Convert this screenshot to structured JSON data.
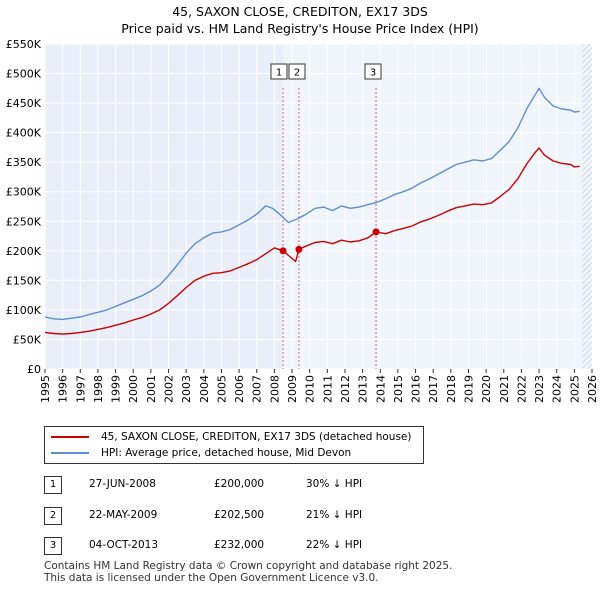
{
  "chart_data": {
    "type": "line",
    "title": "45, SAXON CLOSE, CREDITON, EX17 3DS",
    "subtitle": "Price paid vs. HM Land Registry's House Price Index (HPI)",
    "ylim": [
      0,
      550000
    ],
    "xlim": [
      1995,
      2026
    ],
    "y_ticks": [
      "£0",
      "£50K",
      "£100K",
      "£150K",
      "£200K",
      "£250K",
      "£300K",
      "£350K",
      "£400K",
      "£450K",
      "£500K",
      "£550K"
    ],
    "y_tick_values": [
      0,
      50000,
      100000,
      150000,
      200000,
      250000,
      300000,
      350000,
      400000,
      450000,
      500000,
      550000
    ],
    "x_ticks": [
      "1995",
      "1996",
      "1997",
      "1998",
      "1999",
      "2000",
      "2001",
      "2002",
      "2003",
      "2004",
      "2005",
      "2006",
      "2007",
      "2008",
      "2009",
      "2010",
      "2011",
      "2012",
      "2013",
      "2014",
      "2015",
      "2016",
      "2017",
      "2018",
      "2019",
      "2020",
      "2021",
      "2022",
      "2023",
      "2024",
      "2025",
      "2026"
    ],
    "future_shade_start": 2025.45,
    "series": [
      {
        "name": "HPI: Average price, detached house, Mid Devon",
        "color": "#5b8fd0",
        "x": [
          1995.0,
          1995.5,
          1996.0,
          1996.5,
          1997.0,
          1997.5,
          1998.0,
          1998.5,
          1999.0,
          1999.5,
          2000.0,
          2000.5,
          2001.0,
          2001.5,
          2002.0,
          2002.5,
          2003.0,
          2003.5,
          2004.0,
          2004.5,
          2005.0,
          2005.5,
          2006.0,
          2006.5,
          2007.0,
          2007.5,
          2007.9,
          2008.3,
          2008.8,
          2009.3,
          2009.8,
          2010.3,
          2010.8,
          2011.3,
          2011.8,
          2012.3,
          2012.8,
          2013.3,
          2013.8,
          2014.3,
          2014.8,
          2015.3,
          2015.8,
          2016.3,
          2016.8,
          2017.3,
          2017.8,
          2018.3,
          2018.8,
          2019.3,
          2019.8,
          2020.3,
          2020.8,
          2021.3,
          2021.8,
          2022.3,
          2022.8,
          2023.0,
          2023.3,
          2023.8,
          2024.3,
          2024.8,
          2025.0,
          2025.3
        ],
        "values": [
          88000,
          85000,
          84000,
          86000,
          88000,
          92000,
          96000,
          100000,
          106000,
          112000,
          118000,
          124000,
          132000,
          142000,
          158000,
          176000,
          196000,
          212000,
          222000,
          230000,
          232000,
          236000,
          244000,
          252000,
          262000,
          276000,
          272000,
          262000,
          248000,
          254000,
          262000,
          272000,
          274000,
          268000,
          276000,
          272000,
          274000,
          278000,
          282000,
          288000,
          295000,
          300000,
          306000,
          315000,
          322000,
          330000,
          338000,
          346000,
          350000,
          354000,
          352000,
          356000,
          370000,
          385000,
          408000,
          440000,
          465000,
          475000,
          460000,
          445000,
          440000,
          438000,
          435000,
          436000
        ]
      },
      {
        "name": "45, SAXON CLOSE, CREDITON, EX17 3DS (detached house)",
        "color": "#cc0000",
        "x": [
          1995.0,
          1995.5,
          1996.0,
          1996.5,
          1997.0,
          1997.5,
          1998.0,
          1998.5,
          1999.0,
          1999.5,
          2000.0,
          2000.5,
          2001.0,
          2001.5,
          2002.0,
          2002.5,
          2003.0,
          2003.5,
          2004.0,
          2004.5,
          2005.0,
          2005.5,
          2006.0,
          2006.5,
          2007.0,
          2007.5,
          2008.0,
          2008.49,
          2008.8,
          2009.2,
          2009.39,
          2009.8,
          2010.3,
          2010.8,
          2011.3,
          2011.8,
          2012.3,
          2012.8,
          2013.3,
          2013.76,
          2014.3,
          2014.8,
          2015.3,
          2015.8,
          2016.3,
          2016.8,
          2017.3,
          2017.8,
          2018.3,
          2018.8,
          2019.3,
          2019.8,
          2020.3,
          2020.8,
          2021.3,
          2021.8,
          2022.3,
          2022.8,
          2023.0,
          2023.3,
          2023.8,
          2024.3,
          2024.8,
          2025.0,
          2025.3
        ],
        "values": [
          62000,
          60000,
          59000,
          60000,
          62000,
          64000,
          67000,
          70000,
          74000,
          78000,
          83000,
          87000,
          93000,
          100000,
          111000,
          124000,
          138000,
          150000,
          157000,
          162000,
          163000,
          166000,
          172000,
          178000,
          185000,
          195000,
          205000,
          200000,
          192000,
          182000,
          202500,
          208000,
          214000,
          216000,
          212000,
          218000,
          215000,
          217000,
          222000,
          232000,
          229000,
          234000,
          238000,
          242000,
          249000,
          254000,
          260000,
          267000,
          273000,
          276000,
          279000,
          278000,
          281000,
          292000,
          304000,
          322000,
          347000,
          367000,
          374000,
          362000,
          352000,
          348000,
          346000,
          342000,
          343000
        ]
      }
    ],
    "transactions": [
      {
        "num": "1",
        "x": 2008.49,
        "price_value": 200000
      },
      {
        "num": "2",
        "x": 2009.39,
        "price_value": 202500
      },
      {
        "num": "3",
        "x": 2013.76,
        "price_value": 232000
      }
    ]
  },
  "legend": {
    "property_label": "45, SAXON CLOSE, CREDITON, EX17 3DS (detached house)",
    "hpi_label": "HPI: Average price, detached house, Mid Devon"
  },
  "table": [
    {
      "num": "1",
      "date": "27-JUN-2008",
      "price": "£200,000",
      "hpi": "30% ↓ HPI"
    },
    {
      "num": "2",
      "date": "22-MAY-2009",
      "price": "£202,500",
      "hpi": "21% ↓ HPI"
    },
    {
      "num": "3",
      "date": "04-OCT-2013",
      "price": "£232,000",
      "hpi": "22% ↓ HPI"
    }
  ],
  "footer": {
    "line1": "Contains HM Land Registry data © Crown copyright and database right 2025.",
    "line2": "This data is licensed under the Open Government Licence v3.0."
  },
  "colors": {
    "property": "#cc0000",
    "hpi": "#5b8fd0",
    "shade": "#e9eef9",
    "grid": "#ffffff"
  }
}
